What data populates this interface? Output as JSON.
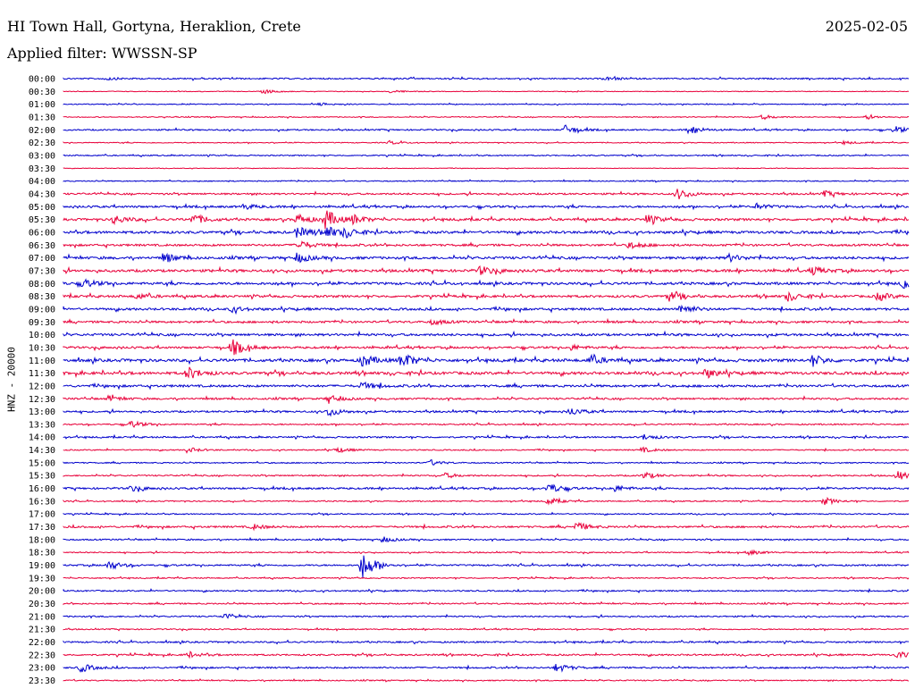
{
  "header": {
    "station": "HI Town Hall, Gortyna, Heraklion, Crete",
    "date": "2025-02-05",
    "filter": "Applied filter: WWSSN-SP"
  },
  "channel_label": "HNZ - 20000",
  "colors": {
    "odd_trace": "#0000cc",
    "even_trace": "#e8003a"
  },
  "chart_data": {
    "type": "line",
    "title": "HI Town Hall, Gortyna, Heraklion, Crete",
    "xlabel": "",
    "ylabel": "HNZ - 20000",
    "row_labels": [
      "00:00",
      "00:30",
      "01:00",
      "01:30",
      "02:00",
      "02:30",
      "03:00",
      "03:30",
      "04:00",
      "04:30",
      "05:00",
      "05:30",
      "06:00",
      "06:30",
      "07:00",
      "07:30",
      "08:00",
      "08:30",
      "09:00",
      "09:30",
      "10:00",
      "10:30",
      "11:00",
      "11:30",
      "12:00",
      "12:30",
      "13:00",
      "13:30",
      "14:00",
      "14:30",
      "15:00",
      "15:30",
      "16:00",
      "16:30",
      "17:00",
      "17:30",
      "18:00",
      "18:30",
      "19:00",
      "19:30",
      "20:00",
      "20:30",
      "21:00",
      "21:30",
      "22:00",
      "22:30",
      "23:00",
      "23:30"
    ],
    "row_minutes": 30,
    "row_noise": [
      1.2,
      0.6,
      0.8,
      0.8,
      1.2,
      0.8,
      1.0,
      0.5,
      0.9,
      1.5,
      1.8,
      2.0,
      2.2,
      1.8,
      2.2,
      2.2,
      2.2,
      2.0,
      2.0,
      1.8,
      2.0,
      1.8,
      2.5,
      2.4,
      2.0,
      1.6,
      1.6,
      1.2,
      1.4,
      1.0,
      1.0,
      1.2,
      1.6,
      1.0,
      1.0,
      1.6,
      1.2,
      1.0,
      1.4,
      1.0,
      1.2,
      1.2,
      1.2,
      1.0,
      1.4,
      1.4,
      1.4,
      1.0
    ],
    "events": [
      {
        "row": 0,
        "minute": 1.5,
        "amp": 1.5
      },
      {
        "row": 0,
        "minute": 19.2,
        "amp": 1.5
      },
      {
        "row": 1,
        "minute": 7.1,
        "amp": 2.5
      },
      {
        "row": 1,
        "minute": 11.6,
        "amp": 1.8
      },
      {
        "row": 2,
        "minute": 9.1,
        "amp": 1.5
      },
      {
        "row": 3,
        "minute": 24.8,
        "amp": 2.5
      },
      {
        "row": 3,
        "minute": 28.5,
        "amp": 2
      },
      {
        "row": 4,
        "minute": 17.8,
        "amp": 5
      },
      {
        "row": 4,
        "minute": 22.2,
        "amp": 5
      },
      {
        "row": 4,
        "minute": 29.5,
        "amp": 4
      },
      {
        "row": 5,
        "minute": 11.6,
        "amp": 1.8
      },
      {
        "row": 5,
        "minute": 27.7,
        "amp": 1.8
      },
      {
        "row": 9,
        "minute": 21.8,
        "amp": 6
      },
      {
        "row": 9,
        "minute": 27.0,
        "amp": 3
      },
      {
        "row": 10,
        "minute": 6.4,
        "amp": 3
      },
      {
        "row": 10,
        "minute": 24.6,
        "amp": 3
      },
      {
        "row": 11,
        "minute": 1.8,
        "amp": 5
      },
      {
        "row": 11,
        "minute": 4.6,
        "amp": 6
      },
      {
        "row": 11,
        "minute": 8.3,
        "amp": 6
      },
      {
        "row": 11,
        "minute": 9.3,
        "amp": 11
      },
      {
        "row": 11,
        "minute": 10.3,
        "amp": 5
      },
      {
        "row": 11,
        "minute": 20.7,
        "amp": 5
      },
      {
        "row": 12,
        "minute": 8.3,
        "amp": 6
      },
      {
        "row": 12,
        "minute": 9.3,
        "amp": 7
      },
      {
        "row": 12,
        "minute": 10.0,
        "amp": 5
      },
      {
        "row": 13,
        "minute": 8.3,
        "amp": 6
      },
      {
        "row": 13,
        "minute": 20.1,
        "amp": 4
      },
      {
        "row": 14,
        "minute": 3.6,
        "amp": 5
      },
      {
        "row": 14,
        "minute": 8.3,
        "amp": 5
      },
      {
        "row": 14,
        "minute": 23.6,
        "amp": 4
      },
      {
        "row": 15,
        "minute": 14.8,
        "amp": 5
      },
      {
        "row": 15,
        "minute": 26.6,
        "amp": 4
      },
      {
        "row": 16,
        "minute": 0.7,
        "amp": 5
      },
      {
        "row": 16,
        "minute": 29.8,
        "amp": 7
      },
      {
        "row": 17,
        "minute": 2.6,
        "amp": 3
      },
      {
        "row": 17,
        "minute": 21.5,
        "amp": 5
      },
      {
        "row": 17,
        "minute": 25.7,
        "amp": 5
      },
      {
        "row": 17,
        "minute": 28.9,
        "amp": 5
      },
      {
        "row": 18,
        "minute": 6.0,
        "amp": 3
      },
      {
        "row": 18,
        "minute": 21.9,
        "amp": 6
      },
      {
        "row": 19,
        "minute": 13.1,
        "amp": 3
      },
      {
        "row": 21,
        "minute": 6.0,
        "amp": 9
      },
      {
        "row": 21,
        "minute": 18.0,
        "amp": 3
      },
      {
        "row": 22,
        "minute": 10.6,
        "amp": 7
      },
      {
        "row": 22,
        "minute": 12.0,
        "amp": 9
      },
      {
        "row": 22,
        "minute": 18.7,
        "amp": 5
      },
      {
        "row": 22,
        "minute": 26.6,
        "amp": 6
      },
      {
        "row": 23,
        "minute": 4.4,
        "amp": 7
      },
      {
        "row": 23,
        "minute": 22.8,
        "amp": 5
      },
      {
        "row": 24,
        "minute": 10.6,
        "amp": 4
      },
      {
        "row": 25,
        "minute": 1.6,
        "amp": 3
      },
      {
        "row": 25,
        "minute": 9.4,
        "amp": 4
      },
      {
        "row": 26,
        "minute": 9.4,
        "amp": 5
      },
      {
        "row": 26,
        "minute": 18.0,
        "amp": 4
      },
      {
        "row": 27,
        "minute": 2.4,
        "amp": 4
      },
      {
        "row": 28,
        "minute": 20.6,
        "amp": 3
      },
      {
        "row": 29,
        "minute": 4.4,
        "amp": 3
      },
      {
        "row": 29,
        "minute": 9.7,
        "amp": 3
      },
      {
        "row": 29,
        "minute": 20.5,
        "amp": 3
      },
      {
        "row": 30,
        "minute": 13.0,
        "amp": 3
      },
      {
        "row": 31,
        "minute": 13.5,
        "amp": 3
      },
      {
        "row": 31,
        "minute": 20.6,
        "amp": 4
      },
      {
        "row": 31,
        "minute": 29.6,
        "amp": 5
      },
      {
        "row": 32,
        "minute": 2.4,
        "amp": 3
      },
      {
        "row": 32,
        "minute": 17.2,
        "amp": 6
      },
      {
        "row": 32,
        "minute": 19.5,
        "amp": 4
      },
      {
        "row": 33,
        "minute": 17.2,
        "amp": 4
      },
      {
        "row": 33,
        "minute": 27.0,
        "amp": 4
      },
      {
        "row": 35,
        "minute": 6.7,
        "amp": 3
      },
      {
        "row": 35,
        "minute": 18.2,
        "amp": 5
      },
      {
        "row": 36,
        "minute": 11.3,
        "amp": 3
      },
      {
        "row": 37,
        "minute": 24.3,
        "amp": 3
      },
      {
        "row": 38,
        "minute": 1.6,
        "amp": 5
      },
      {
        "row": 38,
        "minute": 10.6,
        "amp": 16
      },
      {
        "row": 42,
        "minute": 5.7,
        "amp": 3
      },
      {
        "row": 45,
        "minute": 4.4,
        "amp": 3
      },
      {
        "row": 45,
        "minute": 29.6,
        "amp": 4
      },
      {
        "row": 46,
        "minute": 0.6,
        "amp": 5
      },
      {
        "row": 46,
        "minute": 17.5,
        "amp": 5
      }
    ]
  }
}
